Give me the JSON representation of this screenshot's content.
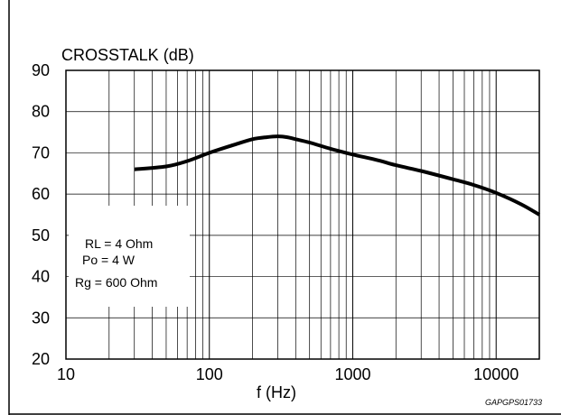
{
  "chart_data": {
    "type": "line",
    "title": "",
    "ylabel": "CROSSTALK (dB)",
    "xlabel": "f (Hz)",
    "x_scale": "log",
    "xlim": [
      10,
      20000
    ],
    "ylim": [
      20,
      90
    ],
    "x_ticks": [
      10,
      100,
      1000,
      10000
    ],
    "x_tick_labels": [
      "10",
      "100",
      "1000",
      "10000"
    ],
    "y_ticks": [
      20,
      30,
      40,
      50,
      60,
      70,
      80,
      90
    ],
    "y_tick_labels": [
      "20",
      "30",
      "40",
      "50",
      "60",
      "70",
      "80",
      "90"
    ],
    "grid": true,
    "series": [
      {
        "x": [
          30,
          50,
          70,
          100,
          150,
          200,
          250,
          300,
          350,
          400,
          500,
          700,
          1000,
          1500,
          2000,
          3000,
          5000,
          7000,
          10000,
          15000,
          20000
        ],
        "y": [
          66,
          66.7,
          68,
          70,
          72,
          73.3,
          73.8,
          74,
          73.8,
          73.3,
          72.5,
          71,
          69.6,
          68.2,
          67,
          65.6,
          63.6,
          62.2,
          60.3,
          57.5,
          55
        ]
      }
    ],
    "annotation_lines": [
      "RL = 4 Ohm",
      "Po = 4 W",
      "Rg = 600 Ohm"
    ],
    "figure_id": "GAPGPS01733",
    "colors": {
      "line": "#000000",
      "grid": "#000000",
      "background": "#ffffff"
    }
  }
}
